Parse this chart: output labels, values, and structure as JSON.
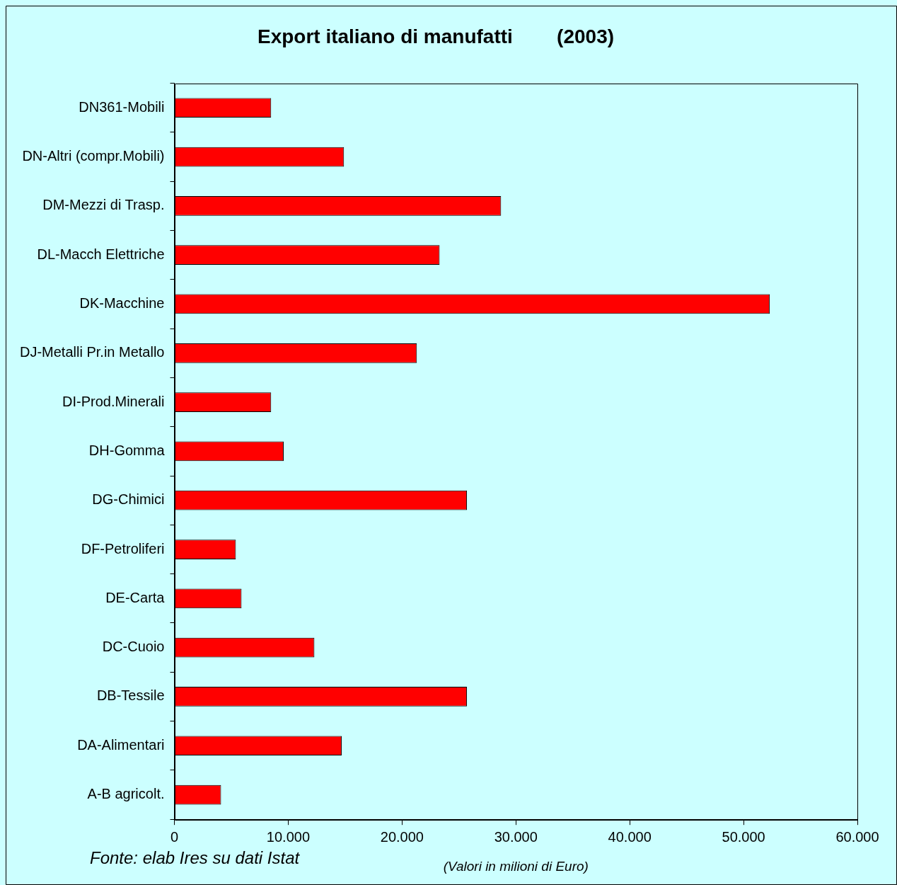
{
  "chart_data": {
    "type": "bar",
    "orientation": "horizontal",
    "title": "Export italiano di manufatti        (2003)",
    "xlabel": "(Valori in milioni di Euro)",
    "categories": [
      "DN361-Mobili",
      "DN-Altri (compr.Mobili)",
      "DM-Mezzi di Trasp.",
      "DL-Macch Elettriche",
      "DK-Macchine",
      "DJ-Metalli Pr.in Metallo",
      "DI-Prod.Minerali",
      "DH-Gomma",
      "DG-Chimici",
      "DF-Petroliferi",
      "DE-Carta",
      "DC-Cuoio",
      "DB-Tessile",
      "DA-Alimentari",
      "A-B agricolt."
    ],
    "values": [
      8500,
      14900,
      28700,
      23300,
      52300,
      21300,
      8500,
      9600,
      25700,
      5400,
      5900,
      12300,
      25700,
      14700,
      4100
    ],
    "color": "#ff0000",
    "xlim": [
      0,
      60000
    ],
    "xticks": [
      0,
      {
        "value": 10000,
        "label": "10.000"
      },
      {
        "value": 20000,
        "label": "20.000"
      },
      {
        "value": 30000,
        "label": "30.000"
      },
      {
        "value": 40000,
        "label": "40.000"
      },
      {
        "value": 50000,
        "label": "50.000"
      },
      {
        "value": 60000,
        "label": "60.000"
      }
    ],
    "grid": false,
    "legend": false,
    "annotations": [
      "Fonte: elab Ires su dati Istat"
    ]
  }
}
